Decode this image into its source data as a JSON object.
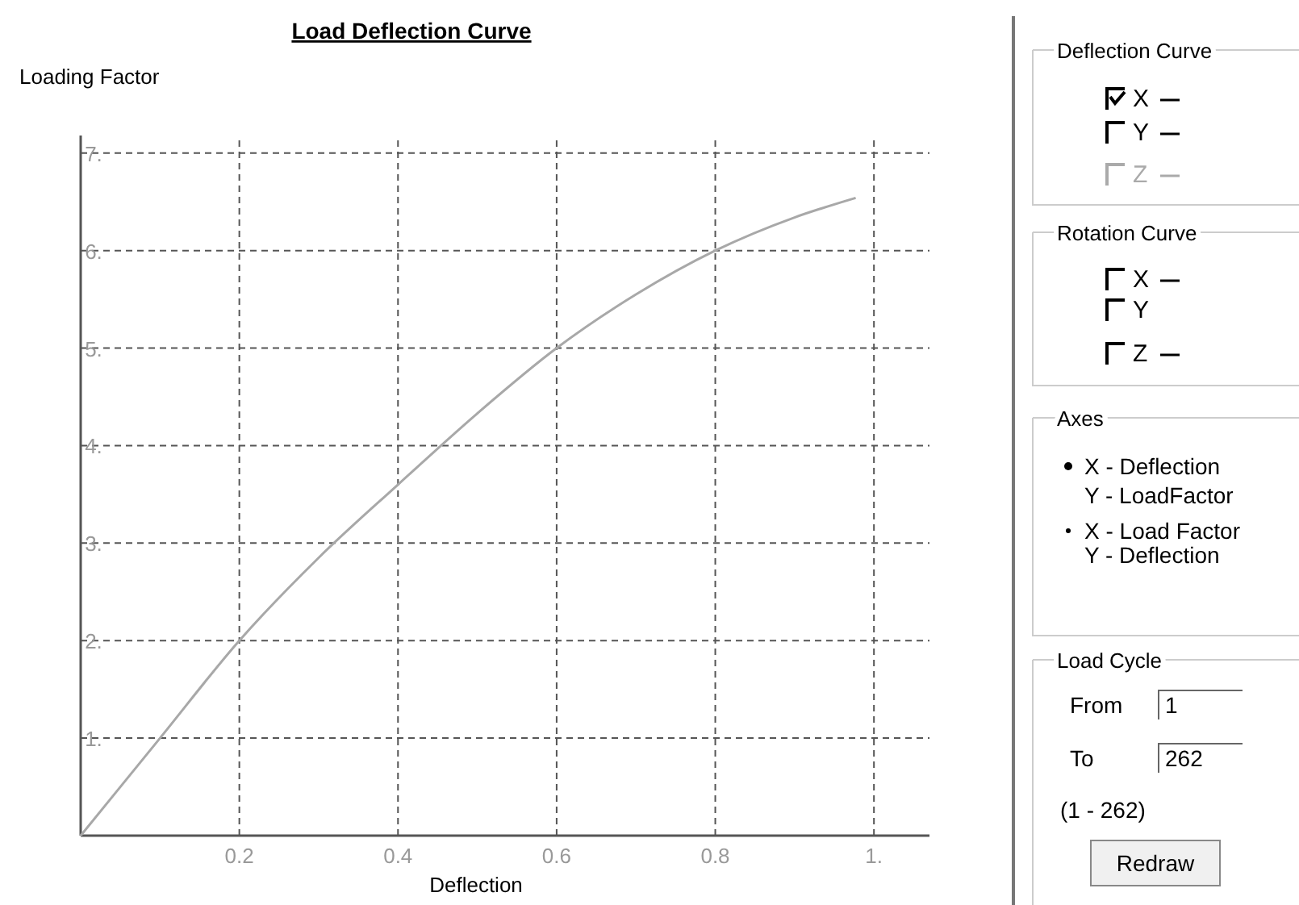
{
  "chart_data": [
    {
      "type": "line",
      "title": "Load Deflection Curve",
      "xlabel": "Deflection",
      "ylabel": "Loading Factor",
      "x": [
        0,
        0.1,
        0.2,
        0.3,
        0.4,
        0.5,
        0.6,
        0.7,
        0.8,
        0.9,
        0.977
      ],
      "series": [
        {
          "color": "#a8a8a8",
          "values": [
            0,
            1.0,
            2.0,
            2.85,
            3.6,
            4.33,
            5.0,
            5.55,
            6.0,
            6.34,
            6.54
          ]
        }
      ],
      "xlim": [
        0,
        1.07
      ],
      "ylim": [
        0,
        7.18
      ],
      "xticks": [
        0.2,
        0.4,
        0.6,
        0.8,
        {
          "value": 1,
          "label": "1."
        }
      ],
      "yticks": [
        {
          "value": 1,
          "label": "1."
        },
        {
          "value": 2,
          "label": "2."
        },
        {
          "value": 3,
          "label": "3."
        },
        {
          "value": 4,
          "label": "4."
        },
        {
          "value": 5,
          "label": "5."
        },
        {
          "value": 6,
          "label": "6."
        },
        {
          "value": 7,
          "label": "7."
        }
      ],
      "grid": true,
      "marker": "none",
      "line_style": "solid"
    },
    {
      "type": "other",
      "annotations": [
        "Deflection Curve",
        "X",
        "Y",
        "Z",
        "Rotation Curve",
        "X",
        "Y",
        "Z",
        "Axes",
        "X - Deflection",
        "Y - LoadFactor",
        "X - Load Factor",
        "Y - Deflection",
        "Load Cycle",
        "From",
        "1",
        "To",
        "262",
        "(1 - 262)",
        "Redraw"
      ]
    }
  ]
}
